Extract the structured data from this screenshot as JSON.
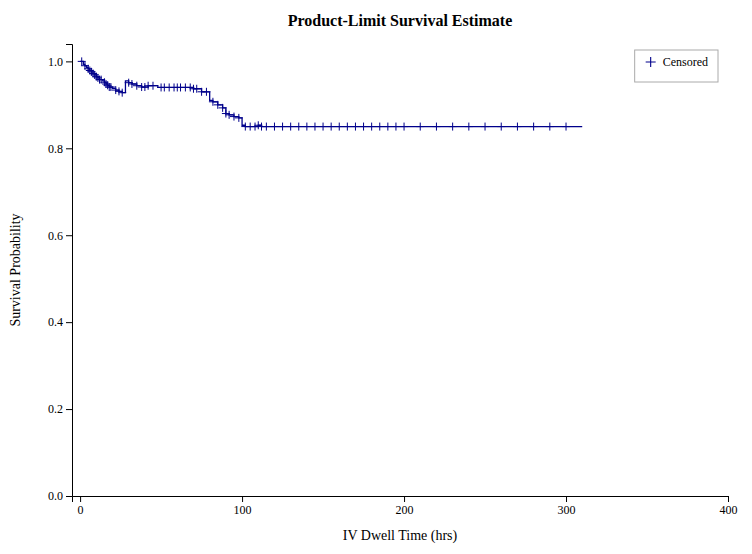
{
  "chart_data": {
    "type": "line",
    "title": "Product-Limit Survival Estimate",
    "x_label": "IV Dwell Time (hrs)",
    "y_label": "Survival Probability",
    "xlim": [
      -5,
      400
    ],
    "ylim": [
      0.0,
      1.04
    ],
    "xticks": [
      0,
      100,
      200,
      300,
      400
    ],
    "yticks": [
      {
        "value": 0.0,
        "label": "0.0"
      },
      0.2,
      0.4,
      0.6,
      0.8,
      {
        "value": 1.0,
        "label": "1.0"
      }
    ],
    "legend": "upper right",
    "series": [
      {
        "type": "step",
        "color": "#00008B",
        "x": [
          0,
          1,
          2,
          3,
          4,
          5,
          6,
          7,
          8,
          9,
          10,
          11,
          12,
          13,
          14,
          15,
          16,
          17,
          18,
          19,
          20,
          22,
          24,
          26,
          28,
          30,
          32,
          35,
          38,
          40,
          42,
          45,
          48,
          50,
          52,
          55,
          58,
          60,
          62,
          65,
          68,
          70,
          72,
          75,
          78,
          80,
          82,
          85,
          88,
          90,
          92,
          95,
          98,
          100,
          102,
          105,
          108,
          110,
          112,
          115,
          120,
          125,
          130,
          135,
          140,
          145,
          150,
          155,
          160,
          165,
          170,
          175,
          180,
          185,
          190,
          195,
          200,
          210,
          220,
          230,
          240,
          250,
          260,
          270,
          280,
          290,
          300,
          310
        ],
        "values": [
          1.0,
          1.0,
          0.993,
          0.99,
          0.986,
          0.983,
          0.979,
          0.976,
          0.972,
          0.969,
          0.965,
          0.962,
          0.958,
          0.958,
          0.955,
          0.952,
          0.948,
          0.945,
          0.941,
          0.941,
          0.938,
          0.934,
          0.931,
          0.928,
          0.955,
          0.951,
          0.948,
          0.944,
          0.941,
          0.941,
          0.944,
          0.944,
          0.94,
          0.94,
          0.94,
          0.94,
          0.94,
          0.94,
          0.94,
          0.94,
          0.94,
          0.937,
          0.937,
          0.93,
          0.93,
          0.91,
          0.907,
          0.9,
          0.893,
          0.88,
          0.877,
          0.873,
          0.87,
          0.853,
          0.85,
          0.85,
          0.85,
          0.853,
          0.85,
          0.85,
          0.85,
          0.85,
          0.85,
          0.85,
          0.85,
          0.85,
          0.85,
          0.85,
          0.85,
          0.85,
          0.85,
          0.85,
          0.85,
          0.85,
          0.85,
          0.85,
          0.85,
          0.85,
          0.85,
          0.85,
          0.85,
          0.85,
          0.85,
          0.85,
          0.85,
          0.85,
          0.85,
          0.85
        ]
      },
      {
        "type": "scatter",
        "name": "Censored",
        "color": "#00008B",
        "marker": "plus",
        "x": [
          1,
          3,
          5,
          6,
          7,
          8,
          9,
          10,
          11,
          12,
          13,
          15,
          16,
          17,
          18,
          19,
          22,
          24,
          26,
          30,
          32,
          35,
          38,
          40,
          42,
          45,
          50,
          52,
          55,
          58,
          60,
          62,
          65,
          68,
          70,
          72,
          75,
          78,
          82,
          85,
          88,
          90,
          92,
          95,
          98,
          102,
          105,
          108,
          110,
          112,
          115,
          120,
          125,
          130,
          135,
          140,
          145,
          150,
          155,
          160,
          165,
          170,
          175,
          180,
          185,
          190,
          195,
          200,
          210,
          220,
          230,
          240,
          250,
          260,
          270,
          280,
          290,
          300
        ],
        "values": [
          1.0,
          0.99,
          0.983,
          0.979,
          0.976,
          0.972,
          0.969,
          0.965,
          0.962,
          0.958,
          0.958,
          0.952,
          0.948,
          0.945,
          0.941,
          0.941,
          0.934,
          0.931,
          0.928,
          0.951,
          0.948,
          0.944,
          0.941,
          0.941,
          0.944,
          0.944,
          0.94,
          0.94,
          0.94,
          0.94,
          0.94,
          0.94,
          0.94,
          0.94,
          0.937,
          0.937,
          0.93,
          0.93,
          0.907,
          0.9,
          0.893,
          0.88,
          0.877,
          0.873,
          0.87,
          0.85,
          0.85,
          0.85,
          0.853,
          0.85,
          0.85,
          0.85,
          0.85,
          0.85,
          0.85,
          0.85,
          0.85,
          0.85,
          0.85,
          0.85,
          0.85,
          0.85,
          0.85,
          0.85,
          0.85,
          0.85,
          0.85,
          0.85,
          0.85,
          0.85,
          0.85,
          0.85,
          0.85,
          0.85,
          0.85,
          0.85,
          0.85,
          0.85
        ]
      }
    ]
  }
}
